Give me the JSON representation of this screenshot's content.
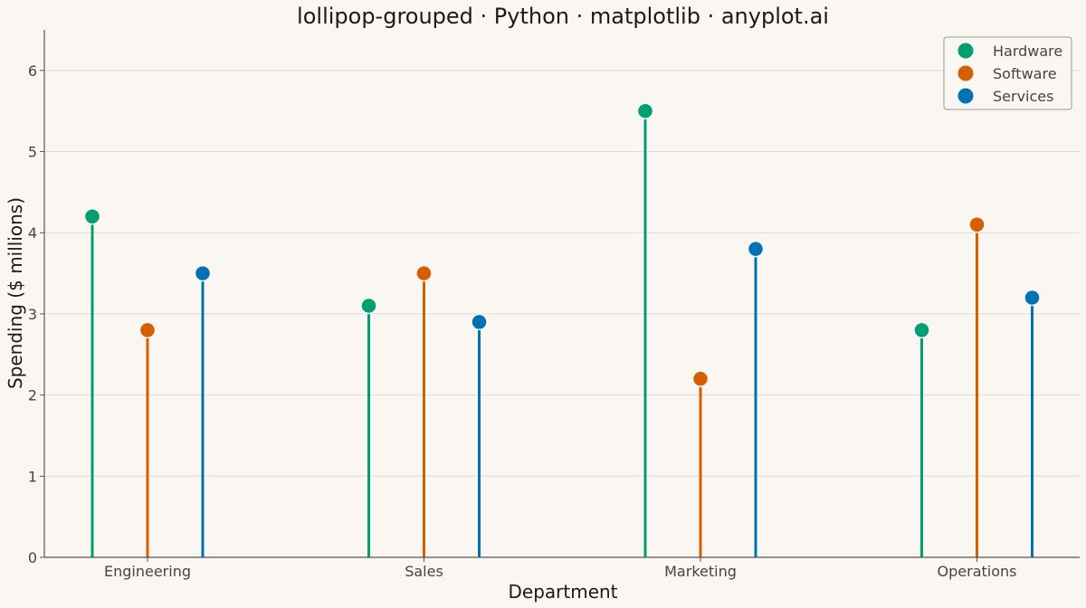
{
  "chart_data": {
    "type": "lollipop",
    "title": "lollipop-grouped · Python · matplotlib · anyplot.ai",
    "xlabel": "Department",
    "ylabel": "Spending ($ millions)",
    "categories": [
      "Engineering",
      "Sales",
      "Marketing",
      "Operations"
    ],
    "series": [
      {
        "name": "Hardware",
        "color": "#009e73",
        "values": [
          4.2,
          3.1,
          5.5,
          2.8
        ]
      },
      {
        "name": "Software",
        "color": "#d55e00",
        "values": [
          2.8,
          3.5,
          2.2,
          4.1
        ]
      },
      {
        "name": "Services",
        "color": "#0072b2",
        "values": [
          3.5,
          2.9,
          3.8,
          3.2
        ]
      }
    ],
    "ylim": [
      0,
      6.5
    ],
    "yticks": [
      0,
      1,
      2,
      3,
      4,
      5,
      6
    ],
    "grid": "horizontal",
    "legend_position": "top-right"
  }
}
